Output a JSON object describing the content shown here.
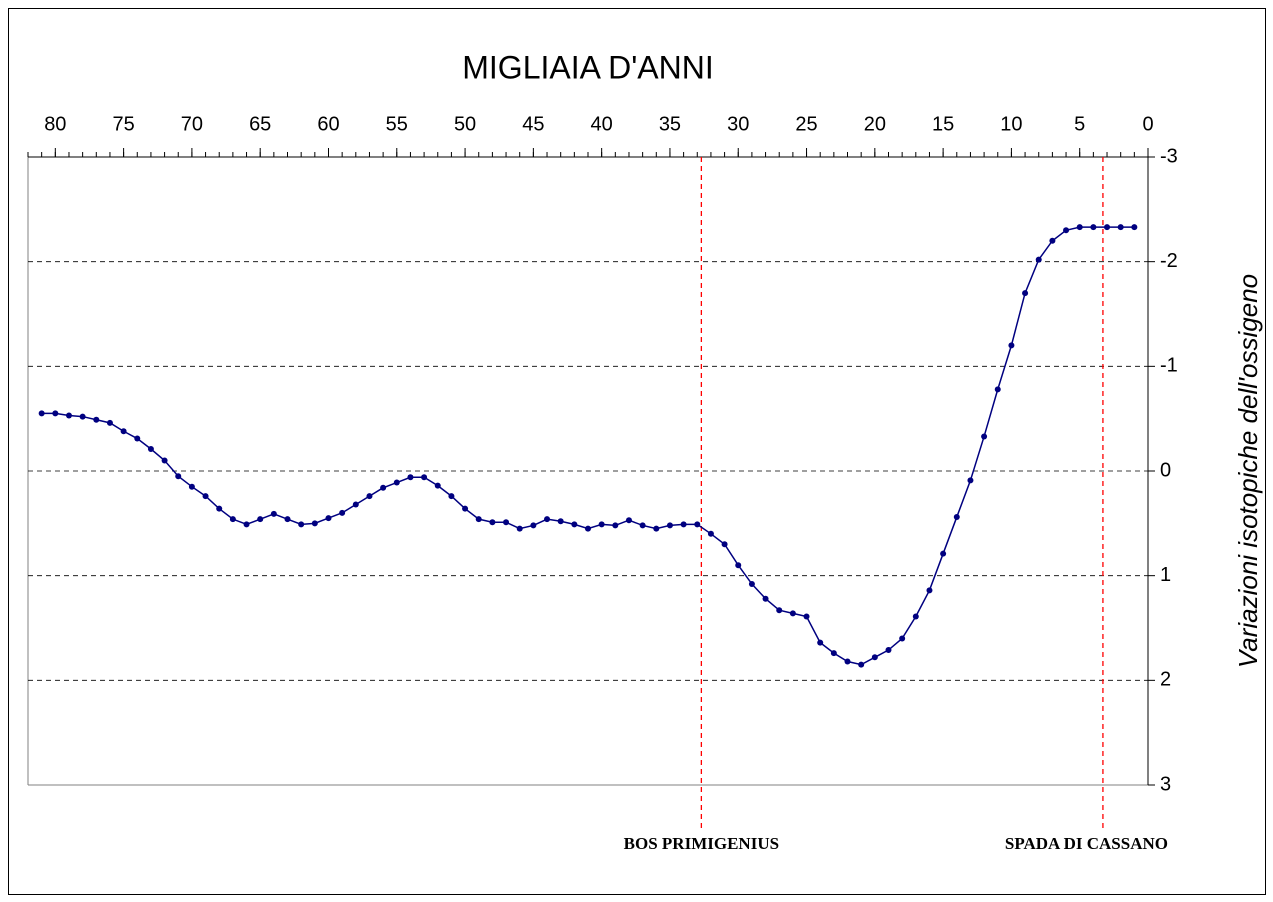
{
  "chart_data": {
    "type": "line",
    "title": "MIGLIAIA D'ANNI",
    "y_label": "Variazioni isotopiche dell'ossigeno",
    "x": [
      81,
      80,
      79,
      78,
      77,
      76,
      75,
      74,
      73,
      72,
      71,
      70,
      69,
      68,
      67,
      66,
      65,
      64,
      63,
      62,
      61,
      60,
      59,
      58,
      57,
      56,
      55,
      54,
      53,
      52,
      51,
      50,
      49,
      48,
      47,
      46,
      45,
      44,
      43,
      42,
      41,
      40,
      39,
      38,
      37,
      36,
      35,
      34,
      33,
      32,
      31,
      30,
      29,
      28,
      27,
      26,
      25,
      24,
      23,
      22,
      21,
      20,
      19,
      18,
      17,
      16,
      15,
      14,
      13,
      12,
      11,
      10,
      9,
      8,
      7,
      6,
      5,
      4,
      3,
      2,
      1
    ],
    "series": [
      {
        "name": "Variazioni isotopiche dell'ossigeno",
        "color": "#000080",
        "values": [
          -0.55,
          -0.55,
          -0.53,
          -0.52,
          -0.49,
          -0.46,
          -0.38,
          -0.31,
          -0.21,
          -0.1,
          0.05,
          0.15,
          0.24,
          0.36,
          0.46,
          0.51,
          0.46,
          0.41,
          0.46,
          0.51,
          0.5,
          0.45,
          0.4,
          0.32,
          0.24,
          0.16,
          0.11,
          0.06,
          0.06,
          0.14,
          0.24,
          0.36,
          0.46,
          0.49,
          0.49,
          0.55,
          0.52,
          0.46,
          0.48,
          0.51,
          0.55,
          0.51,
          0.52,
          0.47,
          0.52,
          0.55,
          0.52,
          0.51,
          0.51,
          0.6,
          0.7,
          0.9,
          1.08,
          1.22,
          1.33,
          1.36,
          1.39,
          1.64,
          1.74,
          1.82,
          1.85,
          1.78,
          1.71,
          1.6,
          1.39,
          1.14,
          0.79,
          0.44,
          0.09,
          -0.33,
          -0.78,
          -1.2,
          -1.7,
          -2.02,
          -2.2,
          -2.3,
          -2.33,
          -2.33,
          -2.33,
          -2.33,
          -2.33
        ]
      }
    ],
    "xlim": [
      82,
      0
    ],
    "xticks": [
      80,
      75,
      70,
      65,
      60,
      55,
      50,
      45,
      40,
      35,
      30,
      25,
      20,
      15,
      10,
      5,
      0
    ],
    "xminorticks": [
      82,
      81,
      80,
      79,
      78,
      77,
      76,
      75,
      74,
      73,
      72,
      71,
      70,
      69,
      68,
      67,
      66,
      65,
      64,
      63,
      62,
      61,
      60,
      59,
      58,
      57,
      56,
      55,
      54,
      53,
      52,
      51,
      50,
      49,
      48,
      47,
      46,
      45,
      44,
      43,
      42,
      41,
      40,
      39,
      38,
      37,
      36,
      35,
      34,
      33,
      32,
      31,
      30,
      29,
      28,
      27,
      26,
      25,
      24,
      23,
      22,
      21,
      20,
      19,
      18,
      17,
      16,
      15,
      14,
      13,
      12,
      11,
      10,
      9,
      8,
      7,
      6,
      5,
      4,
      3,
      2,
      1,
      0
    ],
    "ylim": [
      -3,
      3
    ],
    "yticks": [
      -3,
      -2,
      -1,
      0,
      1,
      2,
      3
    ],
    "grid": true,
    "annotations": [
      {
        "text": "BOS PRIMIGENIUS",
        "x": 32.7,
        "color": "#ff0000"
      },
      {
        "text": "SPADA DI CASSANO",
        "x": 3.3,
        "color": "#ff0000"
      }
    ]
  }
}
